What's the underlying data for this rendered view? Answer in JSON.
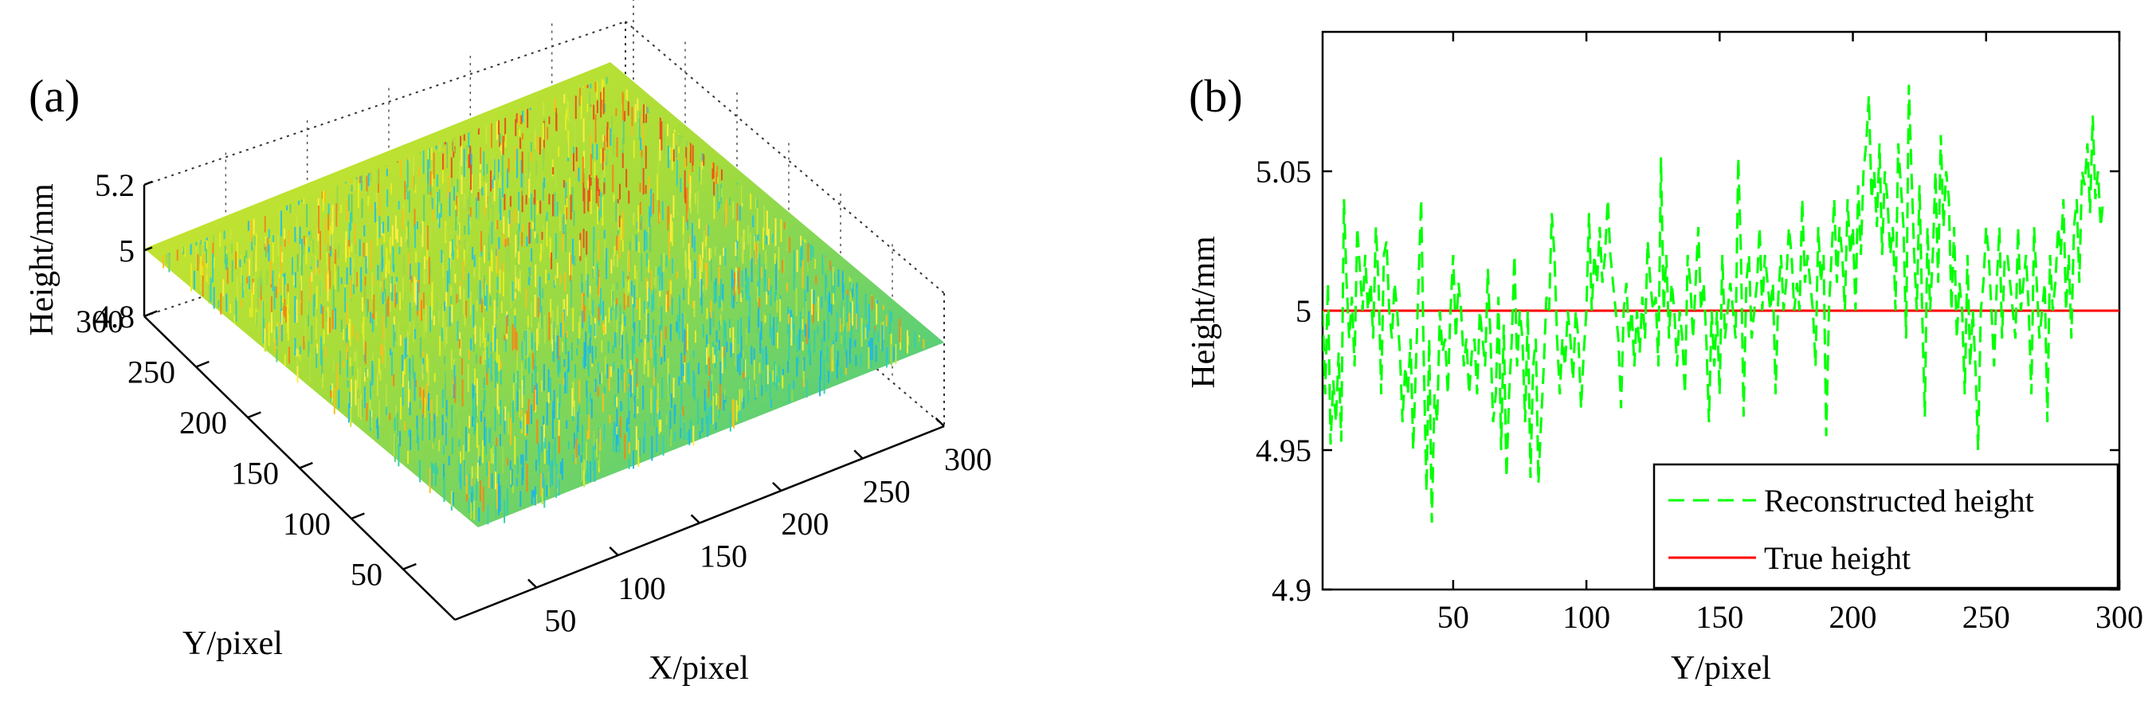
{
  "chart_data": [
    {
      "panel_label": "(a)",
      "type": "surface3d",
      "title": "",
      "xlabel": "X/pixel",
      "ylabel": "Y/pixel",
      "zlabel": "Height/mm",
      "x_ticks": [
        "50",
        "100",
        "150",
        "200",
        "250",
        "300"
      ],
      "y_ticks": [
        "50",
        "100",
        "150",
        "200",
        "250",
        "300"
      ],
      "z_ticks": [
        "4.8",
        "5",
        "5.2"
      ],
      "xlim": [
        1,
        300
      ],
      "ylim": [
        1,
        300
      ],
      "zlim": [
        4.8,
        5.2
      ],
      "grid": true,
      "surface": {
        "mean": 5.0,
        "noise_amplitude": 0.1,
        "colormap": "jet"
      }
    },
    {
      "panel_label": "(b)",
      "type": "line",
      "title": "",
      "xlabel": "Y/pixel",
      "ylabel": "Height/mm",
      "x_ticks": [
        "50",
        "100",
        "150",
        "200",
        "250",
        "300"
      ],
      "y_ticks": [
        "4.9",
        "4.95",
        "5",
        "5.05"
      ],
      "xlim": [
        1,
        300
      ],
      "ylim": [
        4.9,
        5.1
      ],
      "legend_position": "bottom-right",
      "series": [
        {
          "name": "Reconstructed height",
          "color": "#00ff00",
          "style": "dashed",
          "x_step": 1,
          "values": [
            5.0,
            4.97,
            5.01,
            4.952,
            4.975,
            4.96,
            4.985,
            4.953,
            5.04,
            5.01,
            4.99,
            5.005,
            4.98,
            5.03,
            5.015,
            5.0,
            5.02,
            5.0,
            5.01,
            4.99,
            5.03,
            5.01,
            4.97,
            5.02,
            5.025,
            5.0,
            4.99,
            5.01,
            5.0,
            4.985,
            4.96,
            4.98,
            4.97,
            4.99,
            4.95,
            4.98,
            5.01,
            5.04,
            4.98,
            4.935,
            4.99,
            4.924,
            4.97,
            4.96,
            5.0,
            4.985,
            4.99,
            4.97,
            5.0,
            5.02,
            4.99,
            5.01,
            5.0,
            4.98,
            4.99,
            4.97,
            4.985,
            4.99,
            4.97,
            5.0,
            4.99,
            4.98,
            5.015,
            4.99,
            4.96,
            4.97,
            5.005,
            4.95,
            4.995,
            4.94,
            4.97,
            4.99,
            5.02,
            4.98,
            5.0,
            4.99,
            4.96,
            5.0,
            4.94,
            4.98,
            4.99,
            4.938,
            4.96,
            4.98,
            5.005,
            5.0,
            5.035,
            5.02,
            4.99,
            4.97,
            4.99,
            4.98,
            5.0,
            4.99,
            4.975,
            5.0,
            4.99,
            4.965,
            4.985,
            5.0,
            5.035,
            5.0,
            5.02,
            5.01,
            5.03,
            5.01,
            5.02,
            5.04,
            5.02,
            5.01,
            5.0,
            4.99,
            4.965,
            5.0,
            5.01,
            4.99,
            5.0,
            4.98,
            5.0,
            4.985,
            5.005,
            4.99,
            5.025,
            5.01,
            5.0,
            5.005,
            4.98,
            5.055,
            5.0,
            5.02,
            4.99,
            5.01,
            5.0,
            4.98,
            5.0,
            4.99,
            4.97,
            5.02,
            5.01,
            4.99,
            5.01,
            5.03,
            5.0,
            5.01,
            4.99,
            4.96,
            5.0,
            4.98,
            5.0,
            4.97,
            5.02,
            4.99,
            5.0,
            5.01,
            5.0,
            4.99,
            5.055,
            5.02,
            4.962,
            5.01,
            5.02,
            4.99,
            5.0,
            5.01,
            5.03,
            5.0,
            5.02,
            5.01,
            5.0,
            5.01,
            4.97,
            5.005,
            5.02,
            5.0,
            5.01,
            5.03,
            5.02,
            5.0,
            5.01,
            5.0,
            5.04,
            5.01,
            5.02,
            5.01,
            5.0,
            4.98,
            5.03,
            5.01,
            5.02,
            4.955,
            5.0,
            5.02,
            5.04,
            5.01,
            5.03,
            5.02,
            5.0,
            5.04,
            5.02,
            5.03,
            5.0,
            5.045,
            5.02,
            5.05,
            5.06,
            5.077,
            5.04,
            5.05,
            5.03,
            5.06,
            5.02,
            5.05,
            5.04,
            5.02,
            5.03,
            5.0,
            5.06,
            5.045,
            5.03,
            4.99,
            5.081,
            5.05,
            5.02,
            5.0,
            5.045,
            5.0,
            4.962,
            5.03,
            5.0,
            5.02,
            5.05,
            5.01,
            5.063,
            5.03,
            5.05,
            5.04,
            5.0,
            5.03,
            4.99,
            5.01,
            5.0,
            4.97,
            5.02,
            4.98,
            5.0,
            4.98,
            4.95,
            5.0,
            5.01,
            5.03,
            5.02,
            5.0,
            4.98,
            5.01,
            5.03,
            4.99,
            5.02,
            5.02,
            5.01,
            5.0,
            4.99,
            5.03,
            5.0,
            5.01,
            5.02,
            5.0,
            4.97,
            5.03,
            5.01,
            4.99,
            5.0,
            5.01,
            4.96,
            5.02,
            5.0,
            5.01,
            5.03,
            5.02,
            5.04,
            5.0,
            5.02,
            4.99,
            5.03,
            5.04,
            5.01,
            5.05,
            5.045,
            5.06,
            5.035,
            5.07,
            5.04,
            5.05,
            5.03,
            5.04
          ]
        },
        {
          "name": "True height",
          "color": "#ff0000",
          "style": "solid",
          "x": [
            1,
            300
          ],
          "values": [
            5.0,
            5.0
          ]
        }
      ]
    }
  ]
}
